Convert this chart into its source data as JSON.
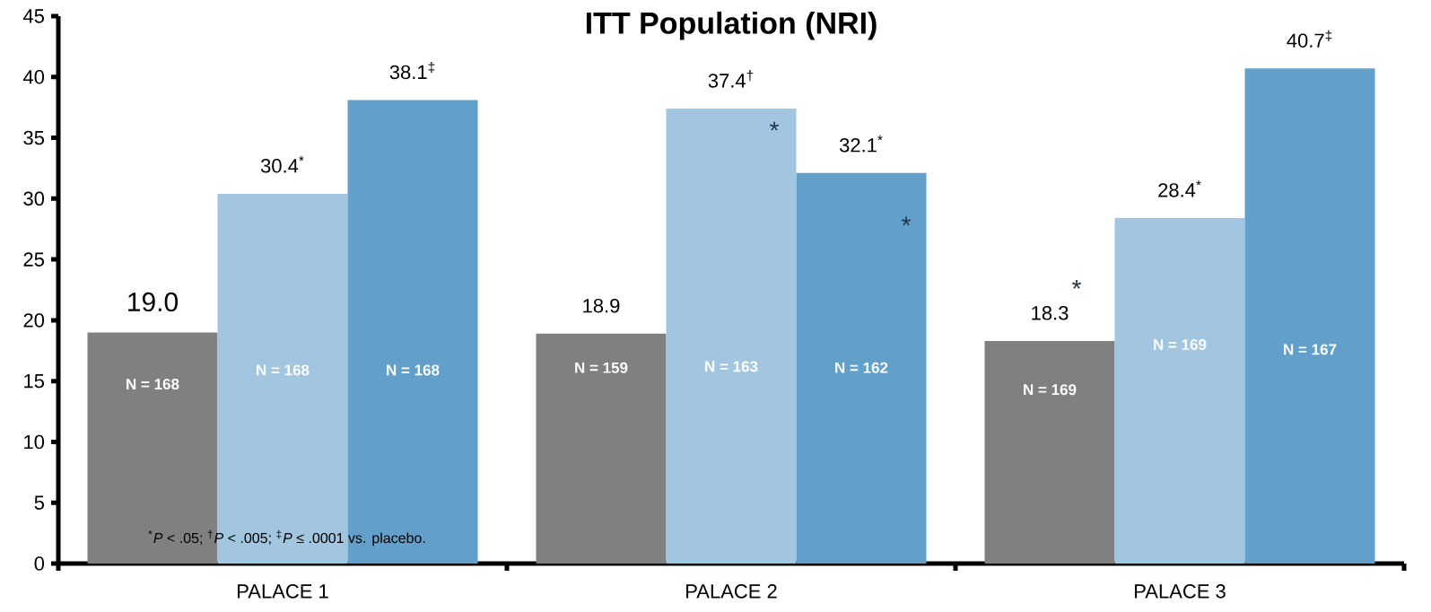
{
  "chart_data": {
    "type": "bar",
    "title": "ITT Population (NRI)",
    "categories": [
      "PALACE 1",
      "PALACE 2",
      "PALACE 3"
    ],
    "series": [
      {
        "color": "#808080",
        "values": [
          19.0,
          18.9,
          18.3
        ],
        "value_labels": [
          "19.0",
          "18.9",
          "18.3"
        ]
      },
      {
        "color": "#a2c6e0",
        "values": [
          30.4,
          37.4,
          28.4
        ],
        "value_labels": [
          "30.4$^{*}$",
          "37.4$^{†}$",
          "28.4$^{*}$"
        ]
      },
      {
        "color": "#62a0cb",
        "values": [
          38.1,
          32.1,
          40.7
        ],
        "value_labels": [
          "38.1$^{‡}$",
          "32.1$^{*}$",
          "40.7$^{‡}$"
        ]
      }
    ],
    "ylim": [
      0,
      45
    ],
    "yticks": [
      0,
      5,
      10,
      15,
      20,
      25,
      30,
      35,
      40,
      45
    ],
    "annotations": [
      "N = 168",
      "N = 168",
      "N = 168",
      "N = 159",
      "N = 163",
      "N = 162",
      "N = 169",
      "N = 169",
      "N = 167",
      "*",
      "*",
      "*",
      "$^{*}$*P* < .05; $^{†}$*P* < .005; $^{‡}$*P* ≤ .0001 vs. placebo."
    ]
  }
}
